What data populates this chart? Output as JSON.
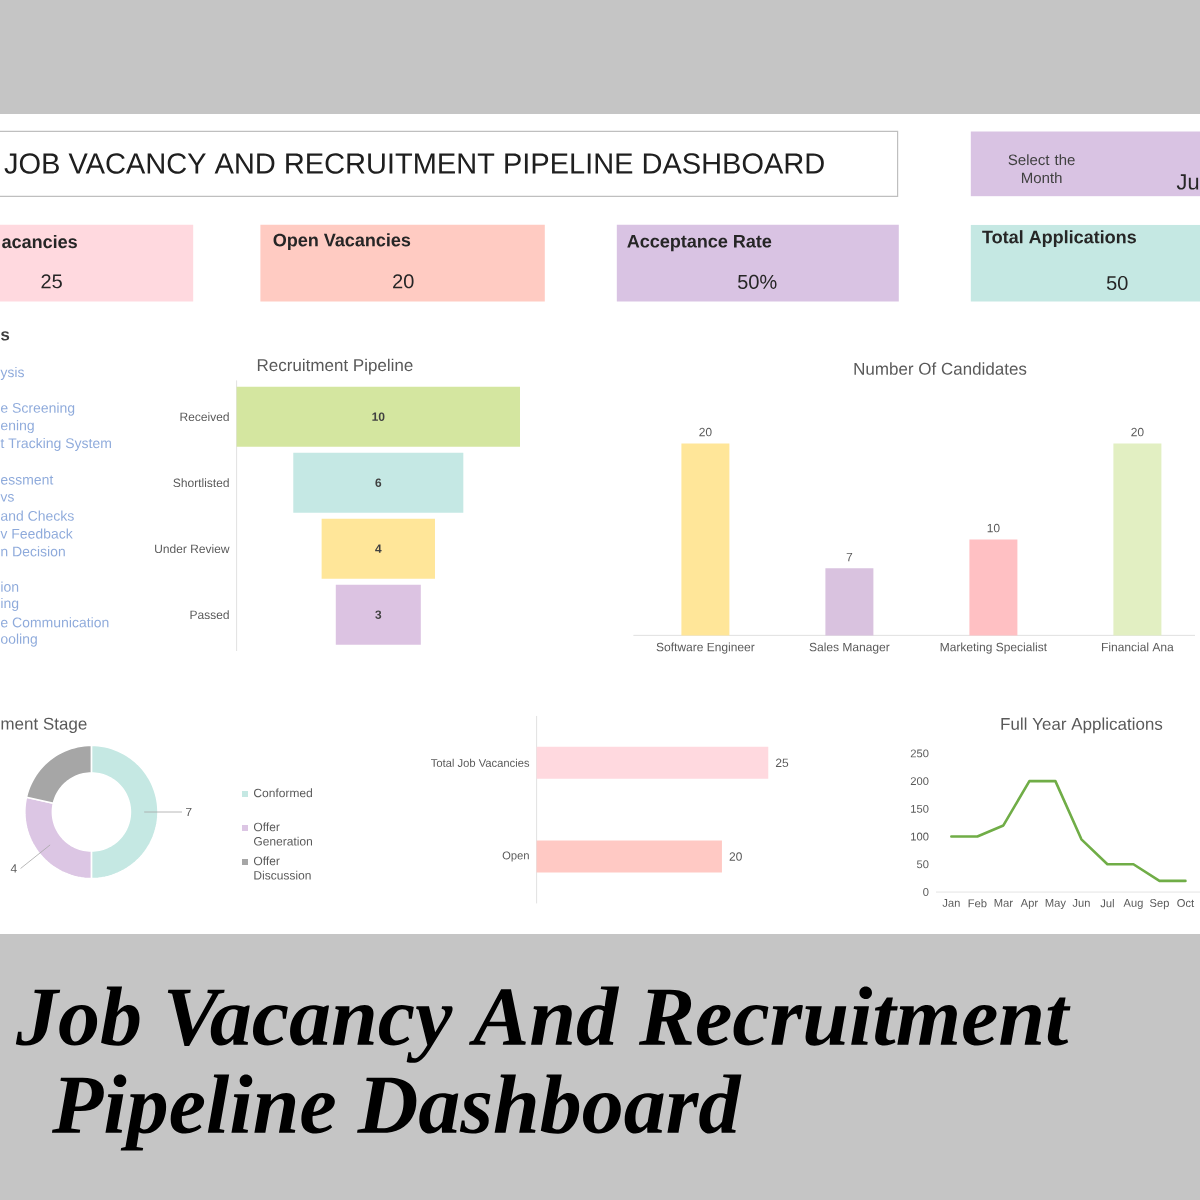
{
  "chart_data": [
    {
      "type": "other",
      "title": "JOB VACANCY AND RECRUITMENT PIPELINE DASHBOARD",
      "annotations": [
        "Select the Month",
        "Ju",
        "acancies",
        "25",
        "Open Vacancies",
        "20",
        "Acceptance Rate",
        "50%",
        "Total Applications",
        "50"
      ]
    },
    {
      "type": "other",
      "title": "s",
      "annotations": [
        "ysis",
        "e Screening",
        "ening",
        "t Tracking System",
        "essment",
        "vs",
        "and Checks",
        "v Feedback",
        "n Decision",
        "ion",
        "ing",
        "e Communication",
        "ooling"
      ]
    },
    {
      "type": "other",
      "title": "Recruitment Pipeline",
      "categories": [
        "Received",
        "Shortlisted",
        "Under Review",
        "Passed"
      ],
      "values": [
        10,
        6,
        4,
        3
      ],
      "colors": [
        "#d4e6a0",
        "#c5e8e4",
        "#ffe699",
        "#dcc3e2"
      ],
      "data_labels": true
    },
    {
      "type": "bar",
      "title": "Number Of Candidates",
      "categories": [
        "Software Engineer",
        "Sales Manager",
        "Marketing Specialist",
        "Financial Ana"
      ],
      "values": [
        20,
        7,
        10,
        20
      ],
      "colors": [
        "#ffe699",
        "#d9c2df",
        "#ffc0c3",
        "#e2efc2"
      ],
      "data_labels": true
    },
    {
      "type": "donut",
      "title": "ment Stage",
      "categories": [
        "Conformed",
        "Offer Generation",
        "Offer Discussion"
      ],
      "values": [
        7,
        4,
        3
      ],
      "value_labels": [
        "7",
        "4",
        null
      ],
      "colors": [
        "#c5e8e3",
        "#dcc6e4",
        "#a6a6a6"
      ],
      "legend": "right"
    },
    {
      "type": "bar",
      "orientation": "horizontal",
      "categories": [
        "Total Job Vacancies",
        "Open"
      ],
      "values": [
        25,
        20
      ],
      "colors": [
        "#ffd9df",
        "#ffc9c4"
      ],
      "data_labels": true
    },
    {
      "type": "line",
      "title": "Full Year Applications",
      "categories": [
        "Jan",
        "Feb",
        "Mar",
        "Apr",
        "May",
        "Jun",
        "Jul",
        "Aug",
        "Sep",
        "Oct"
      ],
      "values": [
        100,
        100,
        120,
        200,
        200,
        95,
        50,
        50,
        20,
        20
      ],
      "color": "#70ad47",
      "ylim": [
        0,
        250
      ],
      "yticks": [
        0,
        50,
        100,
        150,
        200,
        250
      ]
    },
    {
      "type": "other",
      "title": "Job Vacancy And Recruitment Pipeline Dashboard"
    }
  ]
}
